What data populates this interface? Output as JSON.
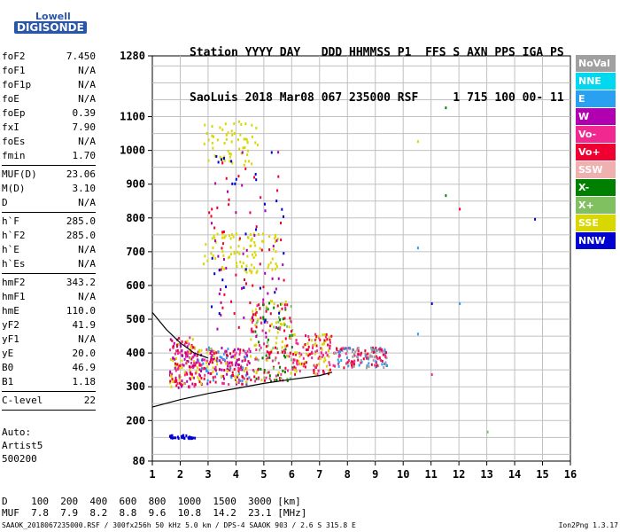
{
  "logo": {
    "line1": "Lowell",
    "line2": "DIGISONDE"
  },
  "header": {
    "line1": "Station YYYY DAY   DDD HHMMSS P1  FFS S AXN PPS IGA PS",
    "line2": "SaoLuis 2018 Mar08 067 235000 RSF     1 715 100 00- 11"
  },
  "params": [
    {
      "group": [
        {
          "k": "foF2",
          "v": "7.450"
        },
        {
          "k": "foF1",
          "v": "N/A"
        },
        {
          "k": "foF1p",
          "v": "N/A"
        },
        {
          "k": "foE",
          "v": "N/A"
        },
        {
          "k": "foEp",
          "v": "0.39"
        },
        {
          "k": "fxI",
          "v": "7.90"
        },
        {
          "k": "foEs",
          "v": "N/A"
        },
        {
          "k": "fmin",
          "v": "1.70"
        }
      ]
    },
    {
      "group": [
        {
          "k": "MUF(D)",
          "v": "23.06"
        },
        {
          "k": "M(D)",
          "v": "3.10"
        },
        {
          "k": "D",
          "v": "N/A"
        }
      ]
    },
    {
      "group": [
        {
          "k": "h`F",
          "v": "285.0"
        },
        {
          "k": "h`F2",
          "v": "285.0"
        },
        {
          "k": "h`E",
          "v": "N/A"
        },
        {
          "k": "h`Es",
          "v": "N/A"
        }
      ]
    },
    {
      "group": [
        {
          "k": "hmF2",
          "v": "343.2"
        },
        {
          "k": "hmF1",
          "v": "N/A"
        },
        {
          "k": "hmE",
          "v": "110.0"
        },
        {
          "k": "yF2",
          "v": "41.9"
        },
        {
          "k": "yF1",
          "v": "N/A"
        },
        {
          "k": "yE",
          "v": "20.0"
        },
        {
          "k": "B0",
          "v": "46.9"
        },
        {
          "k": "B1",
          "v": "1.18"
        }
      ]
    },
    {
      "group": [
        {
          "k": "C-level",
          "v": "22"
        }
      ]
    }
  ],
  "auto": {
    "line1": "Auto:",
    "line2": "Artist5",
    "line3": "500200"
  },
  "muf_table": {
    "line1": "D    100  200  400  600  800  1000  1500  3000 [km]",
    "line2": "MUF  7.8  7.9  8.2  8.8  9.6  10.8  14.2  23.1 [MHz]"
  },
  "footer": {
    "left": "SAAOK_2018067235000.RSF / 300fx256h 50 kHz 5.0 km / DPS-4 SAAOK 903 / 2.6 S 315.8 E",
    "right": "Ion2Png 1.3.17"
  },
  "legend": [
    {
      "label": "NoVal",
      "color": "#a0a0a0"
    },
    {
      "label": "NNE",
      "color": "#00d8f0"
    },
    {
      "label": "E",
      "color": "#2aa0f0"
    },
    {
      "label": "W",
      "color": "#b000b0"
    },
    {
      "label": "Vo-",
      "color": "#f02890"
    },
    {
      "label": "Vo+",
      "color": "#f00030"
    },
    {
      "label": "SSW",
      "color": "#f0b0b0"
    },
    {
      "label": "X-",
      "color": "#008000"
    },
    {
      "label": "X+",
      "color": "#80c060"
    },
    {
      "label": "SSE",
      "color": "#d8d800"
    },
    {
      "label": "NNW",
      "color": "#0000d0"
    }
  ],
  "chart_data": {
    "type": "scatter",
    "x_range": [
      1,
      16
    ],
    "y_range": [
      80,
      1280
    ],
    "x_ticks": [
      "1",
      "2",
      "3",
      "4",
      "5",
      "6",
      "7",
      "8",
      "9",
      "10",
      "11",
      "12",
      "13",
      "14",
      "15",
      "16"
    ],
    "y_ticks": [
      {
        "v": 80,
        "label": "80"
      },
      {
        "v": 200,
        "label": "200"
      },
      {
        "v": 300,
        "label": "300"
      },
      {
        "v": 400,
        "label": "400"
      },
      {
        "v": 500,
        "label": "500"
      },
      {
        "v": 600,
        "label": "600"
      },
      {
        "v": 700,
        "label": "700"
      },
      {
        "v": 800,
        "label": "800"
      },
      {
        "v": 900,
        "label": "900"
      },
      {
        "v": 1000,
        "label": "1000"
      },
      {
        "v": 1100,
        "label": "1100"
      },
      {
        "v": 1280,
        "label": "1280"
      }
    ],
    "grid": true,
    "profile_curve": [
      [
        1.0,
        240
      ],
      [
        2.0,
        262
      ],
      [
        3.0,
        280
      ],
      [
        4.0,
        295
      ],
      [
        5.0,
        310
      ],
      [
        6.0,
        322
      ],
      [
        7.0,
        333
      ],
      [
        7.45,
        343
      ]
    ],
    "upper_curve": [
      [
        1.0,
        520
      ],
      [
        1.5,
        470
      ],
      [
        2.0,
        430
      ],
      [
        2.5,
        400
      ],
      [
        3.0,
        385
      ]
    ],
    "clusters": [
      {
        "x": [
          1.6,
          2.5
        ],
        "y": [
          300,
          450
        ],
        "n": 160,
        "colors": [
          "#f00030",
          "#f02890",
          "#b000b0",
          "#d8d800"
        ]
      },
      {
        "x": [
          2.5,
          4.5
        ],
        "y": [
          310,
          420
        ],
        "n": 220,
        "colors": [
          "#f00030",
          "#d8d800",
          "#f02890",
          "#2aa0f0",
          "#b000b0"
        ]
      },
      {
        "x": [
          4.5,
          6.0
        ],
        "y": [
          320,
          560
        ],
        "n": 200,
        "colors": [
          "#f00030",
          "#d8d800",
          "#80c060",
          "#008000",
          "#f02890"
        ]
      },
      {
        "x": [
          6.0,
          7.5
        ],
        "y": [
          340,
          460
        ],
        "n": 130,
        "colors": [
          "#f00030",
          "#f02890",
          "#d8d800"
        ]
      },
      {
        "x": [
          7.5,
          9.4
        ],
        "y": [
          360,
          420
        ],
        "n": 150,
        "colors": [
          "#f00030",
          "#f02890",
          "#2aa0f0",
          "#a0a0a0"
        ]
      },
      {
        "x": [
          2.8,
          5.5
        ],
        "y": [
          640,
          760
        ],
        "n": 90,
        "colors": [
          "#d8d800"
        ]
      },
      {
        "x": [
          2.8,
          4.8
        ],
        "y": [
          960,
          1090
        ],
        "n": 60,
        "colors": [
          "#d8d800"
        ]
      },
      {
        "x": [
          1.6,
          2.5
        ],
        "y": [
          150,
          160
        ],
        "n": 30,
        "colors": [
          "#0000d0"
        ]
      },
      {
        "x": [
          3.0,
          5.8
        ],
        "y": [
          450,
          1000
        ],
        "n": 110,
        "colors": [
          "#b000b0",
          "#0000d0",
          "#f00030"
        ]
      }
    ],
    "isolated_points": [
      {
        "x": 11.5,
        "y": 1130,
        "c": "#008000"
      },
      {
        "x": 11.5,
        "y": 870,
        "c": "#008000"
      },
      {
        "x": 12.0,
        "y": 830,
        "c": "#f00030"
      },
      {
        "x": 14.7,
        "y": 800,
        "c": "#0000d0"
      },
      {
        "x": 10.5,
        "y": 1030,
        "c": "#d8d800"
      },
      {
        "x": 10.5,
        "y": 715,
        "c": "#2aa0f0"
      },
      {
        "x": 11.0,
        "y": 550,
        "c": "#0000d0"
      },
      {
        "x": 12.0,
        "y": 550,
        "c": "#2aa0f0"
      },
      {
        "x": 13.0,
        "y": 170,
        "c": "#80c060"
      },
      {
        "x": 10.5,
        "y": 460,
        "c": "#2aa0f0"
      },
      {
        "x": 11.0,
        "y": 340,
        "c": "#f02890"
      }
    ]
  }
}
